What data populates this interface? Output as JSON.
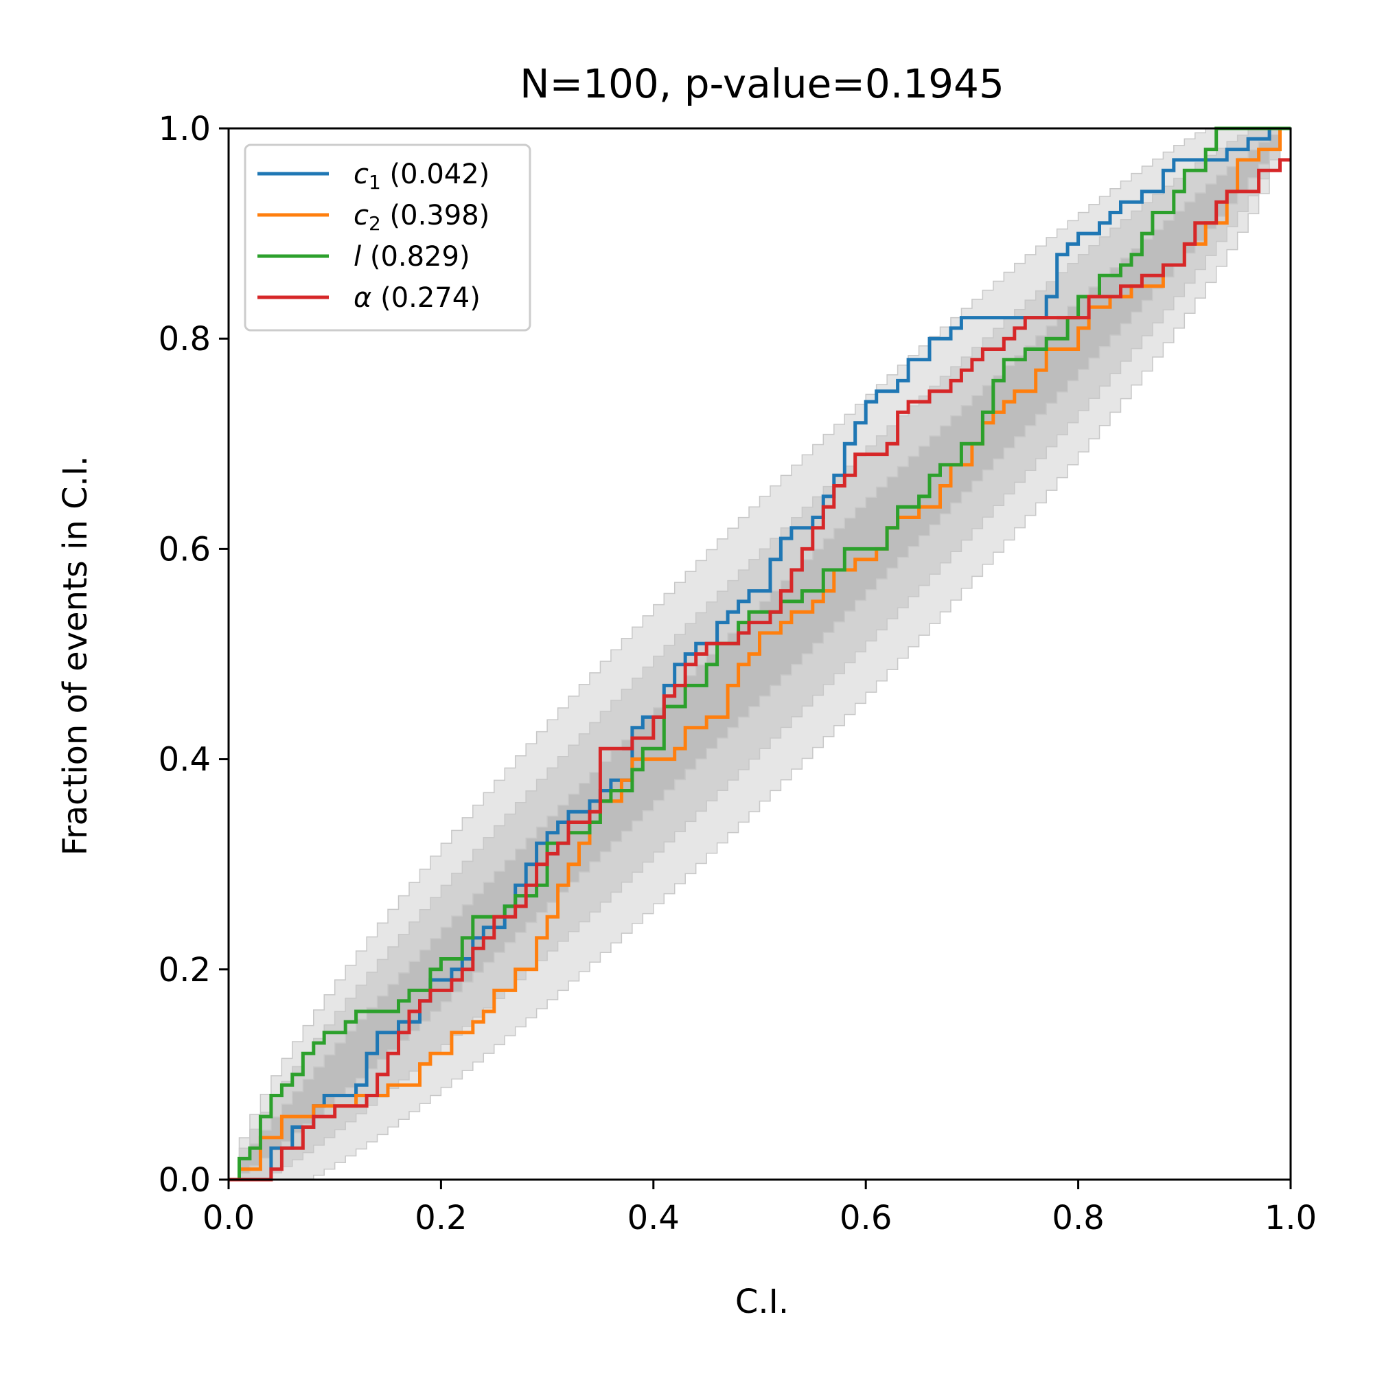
{
  "chart_data": {
    "type": "line",
    "title": "N=100, p-value=0.1945",
    "xlabel": "C.I.",
    "ylabel": "Fraction of events in C.I.",
    "xlim": [
      0,
      1
    ],
    "ylim": [
      0,
      1
    ],
    "x_ticks": [
      "0.0",
      "0.2",
      "0.4",
      "0.6",
      "0.8",
      "1.0"
    ],
    "y_ticks": [
      "0.0",
      "0.2",
      "0.4",
      "0.6",
      "0.8",
      "1.0"
    ],
    "grid": false,
    "legend_position": "top-left",
    "step_lines": true,
    "confidence_bands": {
      "n": 100,
      "levels": [
        "1 sigma",
        "2 sigma",
        "3 sigma"
      ],
      "colors": [
        "#bdbdbd",
        "#d2d2d2",
        "#e6e6e6"
      ]
    },
    "series": [
      {
        "name": "c",
        "sub": "1",
        "pvalue": "(0.042)",
        "color": "#1f77b4",
        "points": [
          [
            0,
            0
          ],
          [
            0.03,
            0
          ],
          [
            0.04,
            0.03
          ],
          [
            0.06,
            0.05
          ],
          [
            0.08,
            0.07
          ],
          [
            0.09,
            0.08
          ],
          [
            0.11,
            0.08
          ],
          [
            0.12,
            0.09
          ],
          [
            0.13,
            0.12
          ],
          [
            0.14,
            0.14
          ],
          [
            0.16,
            0.15
          ],
          [
            0.18,
            0.17
          ],
          [
            0.19,
            0.19
          ],
          [
            0.21,
            0.2
          ],
          [
            0.22,
            0.21
          ],
          [
            0.23,
            0.23
          ],
          [
            0.24,
            0.24
          ],
          [
            0.26,
            0.26
          ],
          [
            0.27,
            0.28
          ],
          [
            0.28,
            0.3
          ],
          [
            0.29,
            0.32
          ],
          [
            0.3,
            0.33
          ],
          [
            0.31,
            0.34
          ],
          [
            0.32,
            0.35
          ],
          [
            0.34,
            0.36
          ],
          [
            0.35,
            0.37
          ],
          [
            0.36,
            0.38
          ],
          [
            0.38,
            0.43
          ],
          [
            0.39,
            0.44
          ],
          [
            0.41,
            0.47
          ],
          [
            0.42,
            0.49
          ],
          [
            0.43,
            0.5
          ],
          [
            0.44,
            0.51
          ],
          [
            0.46,
            0.53
          ],
          [
            0.47,
            0.54
          ],
          [
            0.48,
            0.55
          ],
          [
            0.49,
            0.56
          ],
          [
            0.51,
            0.59
          ],
          [
            0.52,
            0.61
          ],
          [
            0.53,
            0.62
          ],
          [
            0.55,
            0.63
          ],
          [
            0.56,
            0.65
          ],
          [
            0.57,
            0.67
          ],
          [
            0.58,
            0.7
          ],
          [
            0.59,
            0.72
          ],
          [
            0.6,
            0.74
          ],
          [
            0.61,
            0.75
          ],
          [
            0.63,
            0.76
          ],
          [
            0.64,
            0.78
          ],
          [
            0.66,
            0.8
          ],
          [
            0.68,
            0.81
          ],
          [
            0.69,
            0.82
          ],
          [
            0.71,
            0.82
          ],
          [
            0.77,
            0.84
          ],
          [
            0.78,
            0.88
          ],
          [
            0.79,
            0.89
          ],
          [
            0.8,
            0.9
          ],
          [
            0.82,
            0.91
          ],
          [
            0.83,
            0.92
          ],
          [
            0.84,
            0.93
          ],
          [
            0.86,
            0.94
          ],
          [
            0.88,
            0.96
          ],
          [
            0.89,
            0.97
          ],
          [
            0.94,
            0.98
          ],
          [
            0.96,
            0.99
          ],
          [
            0.98,
            1.0
          ],
          [
            1,
            1.0
          ]
        ]
      },
      {
        "name": "c",
        "sub": "2",
        "pvalue": "(0.398)",
        "color": "#ff7f0e",
        "points": [
          [
            0,
            0
          ],
          [
            0.01,
            0.01
          ],
          [
            0.03,
            0.04
          ],
          [
            0.05,
            0.06
          ],
          [
            0.08,
            0.07
          ],
          [
            0.1,
            0.07
          ],
          [
            0.12,
            0.08
          ],
          [
            0.15,
            0.09
          ],
          [
            0.18,
            0.11
          ],
          [
            0.19,
            0.12
          ],
          [
            0.21,
            0.14
          ],
          [
            0.23,
            0.15
          ],
          [
            0.24,
            0.16
          ],
          [
            0.25,
            0.18
          ],
          [
            0.27,
            0.2
          ],
          [
            0.29,
            0.23
          ],
          [
            0.3,
            0.25
          ],
          [
            0.31,
            0.28
          ],
          [
            0.32,
            0.3
          ],
          [
            0.33,
            0.32
          ],
          [
            0.34,
            0.34
          ],
          [
            0.35,
            0.36
          ],
          [
            0.37,
            0.38
          ],
          [
            0.38,
            0.4
          ],
          [
            0.42,
            0.41
          ],
          [
            0.43,
            0.43
          ],
          [
            0.45,
            0.44
          ],
          [
            0.47,
            0.47
          ],
          [
            0.48,
            0.49
          ],
          [
            0.49,
            0.5
          ],
          [
            0.5,
            0.52
          ],
          [
            0.52,
            0.53
          ],
          [
            0.53,
            0.54
          ],
          [
            0.55,
            0.55
          ],
          [
            0.56,
            0.56
          ],
          [
            0.57,
            0.58
          ],
          [
            0.59,
            0.59
          ],
          [
            0.61,
            0.6
          ],
          [
            0.62,
            0.62
          ],
          [
            0.63,
            0.63
          ],
          [
            0.65,
            0.64
          ],
          [
            0.67,
            0.66
          ],
          [
            0.68,
            0.68
          ],
          [
            0.7,
            0.7
          ],
          [
            0.71,
            0.72
          ],
          [
            0.72,
            0.73
          ],
          [
            0.73,
            0.74
          ],
          [
            0.74,
            0.75
          ],
          [
            0.76,
            0.77
          ],
          [
            0.77,
            0.79
          ],
          [
            0.8,
            0.81
          ],
          [
            0.81,
            0.83
          ],
          [
            0.83,
            0.84
          ],
          [
            0.85,
            0.85
          ],
          [
            0.88,
            0.87
          ],
          [
            0.9,
            0.89
          ],
          [
            0.92,
            0.91
          ],
          [
            0.94,
            0.94
          ],
          [
            0.95,
            0.97
          ],
          [
            0.97,
            0.98
          ],
          [
            0.99,
            1.0
          ],
          [
            1,
            1.0
          ]
        ]
      },
      {
        "name": "l",
        "sub": "",
        "pvalue": "(0.829)",
        "color": "#2ca02c",
        "points": [
          [
            0,
            0
          ],
          [
            0.01,
            0.02
          ],
          [
            0.02,
            0.03
          ],
          [
            0.03,
            0.06
          ],
          [
            0.04,
            0.08
          ],
          [
            0.05,
            0.09
          ],
          [
            0.06,
            0.1
          ],
          [
            0.07,
            0.12
          ],
          [
            0.08,
            0.13
          ],
          [
            0.09,
            0.14
          ],
          [
            0.11,
            0.15
          ],
          [
            0.12,
            0.16
          ],
          [
            0.16,
            0.17
          ],
          [
            0.17,
            0.18
          ],
          [
            0.19,
            0.2
          ],
          [
            0.2,
            0.21
          ],
          [
            0.22,
            0.23
          ],
          [
            0.23,
            0.25
          ],
          [
            0.26,
            0.26
          ],
          [
            0.27,
            0.27
          ],
          [
            0.29,
            0.28
          ],
          [
            0.3,
            0.32
          ],
          [
            0.32,
            0.33
          ],
          [
            0.34,
            0.34
          ],
          [
            0.35,
            0.36
          ],
          [
            0.36,
            0.37
          ],
          [
            0.38,
            0.39
          ],
          [
            0.39,
            0.41
          ],
          [
            0.41,
            0.45
          ],
          [
            0.43,
            0.47
          ],
          [
            0.45,
            0.49
          ],
          [
            0.46,
            0.51
          ],
          [
            0.48,
            0.53
          ],
          [
            0.49,
            0.54
          ],
          [
            0.52,
            0.55
          ],
          [
            0.54,
            0.56
          ],
          [
            0.56,
            0.58
          ],
          [
            0.58,
            0.6
          ],
          [
            0.62,
            0.62
          ],
          [
            0.63,
            0.64
          ],
          [
            0.65,
            0.65
          ],
          [
            0.66,
            0.67
          ],
          [
            0.67,
            0.68
          ],
          [
            0.69,
            0.7
          ],
          [
            0.71,
            0.73
          ],
          [
            0.72,
            0.76
          ],
          [
            0.73,
            0.78
          ],
          [
            0.75,
            0.79
          ],
          [
            0.77,
            0.8
          ],
          [
            0.79,
            0.82
          ],
          [
            0.8,
            0.84
          ],
          [
            0.82,
            0.86
          ],
          [
            0.84,
            0.87
          ],
          [
            0.85,
            0.88
          ],
          [
            0.86,
            0.9
          ],
          [
            0.87,
            0.92
          ],
          [
            0.89,
            0.94
          ],
          [
            0.9,
            0.96
          ],
          [
            0.92,
            0.98
          ],
          [
            0.93,
            1.0
          ],
          [
            1,
            1.0
          ]
        ]
      },
      {
        "name": "α",
        "sub": "",
        "pvalue": "(0.274)",
        "color": "#d62728",
        "points": [
          [
            0,
            0
          ],
          [
            0.04,
            0.01
          ],
          [
            0.05,
            0.03
          ],
          [
            0.07,
            0.05
          ],
          [
            0.08,
            0.06
          ],
          [
            0.1,
            0.07
          ],
          [
            0.13,
            0.08
          ],
          [
            0.14,
            0.1
          ],
          [
            0.15,
            0.12
          ],
          [
            0.16,
            0.14
          ],
          [
            0.17,
            0.16
          ],
          [
            0.18,
            0.17
          ],
          [
            0.19,
            0.18
          ],
          [
            0.21,
            0.19
          ],
          [
            0.22,
            0.2
          ],
          [
            0.23,
            0.22
          ],
          [
            0.24,
            0.23
          ],
          [
            0.25,
            0.25
          ],
          [
            0.27,
            0.26
          ],
          [
            0.28,
            0.28
          ],
          [
            0.29,
            0.3
          ],
          [
            0.3,
            0.31
          ],
          [
            0.31,
            0.32
          ],
          [
            0.32,
            0.34
          ],
          [
            0.34,
            0.35
          ],
          [
            0.35,
            0.38
          ],
          [
            0.35,
            0.41
          ],
          [
            0.38,
            0.42
          ],
          [
            0.4,
            0.44
          ],
          [
            0.41,
            0.46
          ],
          [
            0.42,
            0.47
          ],
          [
            0.43,
            0.49
          ],
          [
            0.44,
            0.5
          ],
          [
            0.45,
            0.51
          ],
          [
            0.47,
            0.51
          ],
          [
            0.48,
            0.52
          ],
          [
            0.49,
            0.53
          ],
          [
            0.51,
            0.54
          ],
          [
            0.52,
            0.56
          ],
          [
            0.53,
            0.58
          ],
          [
            0.54,
            0.6
          ],
          [
            0.55,
            0.62
          ],
          [
            0.56,
            0.64
          ],
          [
            0.57,
            0.66
          ],
          [
            0.58,
            0.67
          ],
          [
            0.59,
            0.69
          ],
          [
            0.62,
            0.7
          ],
          [
            0.63,
            0.73
          ],
          [
            0.64,
            0.74
          ],
          [
            0.66,
            0.75
          ],
          [
            0.68,
            0.76
          ],
          [
            0.69,
            0.77
          ],
          [
            0.7,
            0.78
          ],
          [
            0.71,
            0.79
          ],
          [
            0.73,
            0.8
          ],
          [
            0.74,
            0.81
          ],
          [
            0.75,
            0.82
          ],
          [
            0.81,
            0.84
          ],
          [
            0.84,
            0.85
          ],
          [
            0.86,
            0.86
          ],
          [
            0.88,
            0.87
          ],
          [
            0.9,
            0.89
          ],
          [
            0.91,
            0.91
          ],
          [
            0.93,
            0.93
          ],
          [
            0.94,
            0.94
          ],
          [
            0.97,
            0.96
          ],
          [
            0.99,
            0.97
          ],
          [
            1,
            0.97
          ]
        ]
      }
    ]
  }
}
